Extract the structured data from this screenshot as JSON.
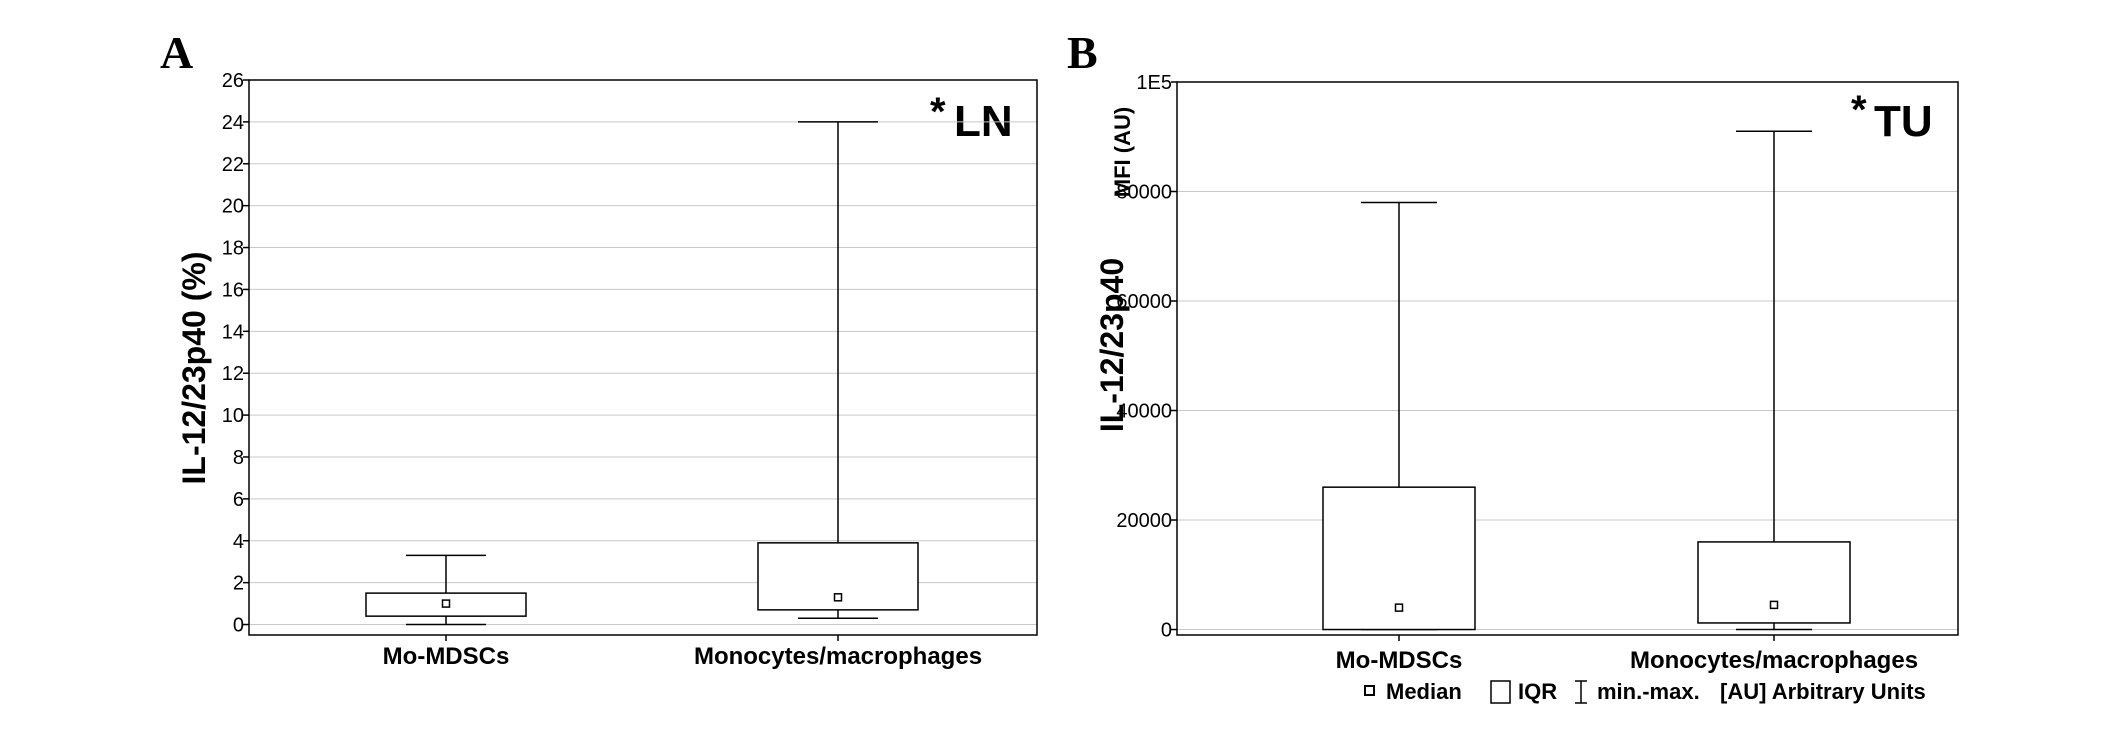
{
  "figure": {
    "legend": {
      "median_label": "Median",
      "iqr_label": "IQR",
      "range_label": "min.-max.",
      "units_label": "[AU] Arbitrary Units"
    }
  },
  "chart_data": [
    {
      "panel": "A",
      "type": "box",
      "tag_star": "*",
      "tag_text": "LN",
      "ylabel": "IL-12/23p40 (%)",
      "ylim": [
        -0.5,
        26
      ],
      "yticks": [
        "0",
        "2",
        "4",
        "6",
        "8",
        "10",
        "12",
        "14",
        "16",
        "18",
        "20",
        "22",
        "24",
        "26"
      ],
      "ytick_values": [
        0,
        2,
        4,
        6,
        8,
        10,
        12,
        14,
        16,
        18,
        20,
        22,
        24,
        26
      ],
      "grid": true,
      "categories": [
        "Mo-MDSCs",
        "Monocytes/macrophages"
      ],
      "boxes": [
        {
          "min": 0.0,
          "q1": 0.4,
          "median": 1.0,
          "q3": 1.5,
          "max": 3.3
        },
        {
          "min": 0.3,
          "q1": 0.7,
          "median": 1.3,
          "q3": 3.9,
          "max": 24.0
        }
      ]
    },
    {
      "panel": "B",
      "type": "box",
      "tag_star": "*",
      "tag_text": "TU",
      "ylabel": "IL-12/23p40",
      "ylabel_secondary": "MFI (AU)",
      "ylim": [
        -1000,
        100000
      ],
      "yticks": [
        "0",
        "20000",
        "40000",
        "60000",
        "80000",
        "1E5"
      ],
      "ytick_values": [
        0,
        20000,
        40000,
        60000,
        80000,
        100000
      ],
      "grid": true,
      "categories": [
        "Mo-MDSCs",
        "Monocytes/macrophages"
      ],
      "boxes": [
        {
          "min": 0,
          "q1": 0,
          "median": 4000,
          "q3": 26000,
          "max": 78000
        },
        {
          "min": 0,
          "q1": 1200,
          "median": 4500,
          "q3": 16000,
          "max": 91000
        }
      ]
    }
  ]
}
